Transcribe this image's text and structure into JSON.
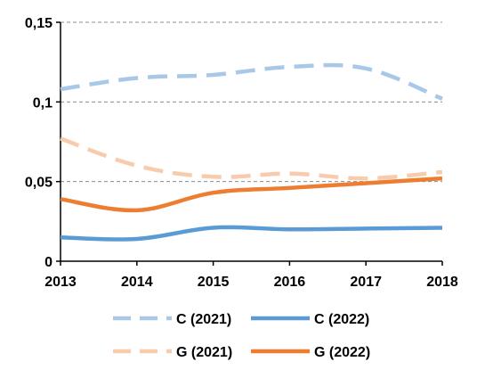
{
  "chart_data": {
    "type": "line",
    "title": "",
    "xlabel": "",
    "ylabel": "",
    "x": [
      "2013",
      "2014",
      "2015",
      "2016",
      "2017",
      "2018"
    ],
    "x_tick_labels": [
      "2013",
      "2014",
      "2015",
      "2016",
      "2017",
      "2018"
    ],
    "ylim": [
      0,
      0.15
    ],
    "y_ticks": [
      0,
      0.05,
      0.1,
      0.15
    ],
    "y_tick_labels": [
      "0",
      "0,05",
      "0,1",
      "0,15"
    ],
    "grid": "horizontal dashed",
    "legend_position": "bottom",
    "series": [
      {
        "name": "C (2021)",
        "values": [
          0.108,
          0.115,
          0.117,
          0.122,
          0.121,
          0.102
        ],
        "color": "#a9c8e8",
        "dash": "dashed"
      },
      {
        "name": "C (2022)",
        "values": [
          0.015,
          0.014,
          0.021,
          0.02,
          0.0205,
          0.021
        ],
        "color": "#5b9bd5",
        "dash": "solid"
      },
      {
        "name": "G (2021)",
        "values": [
          0.077,
          0.06,
          0.053,
          0.055,
          0.052,
          0.056
        ],
        "color": "#f8cbad",
        "dash": "dashed"
      },
      {
        "name": "G (2022)",
        "values": [
          0.039,
          0.032,
          0.043,
          0.046,
          0.049,
          0.052
        ],
        "color": "#ed7d31",
        "dash": "solid"
      }
    ]
  }
}
